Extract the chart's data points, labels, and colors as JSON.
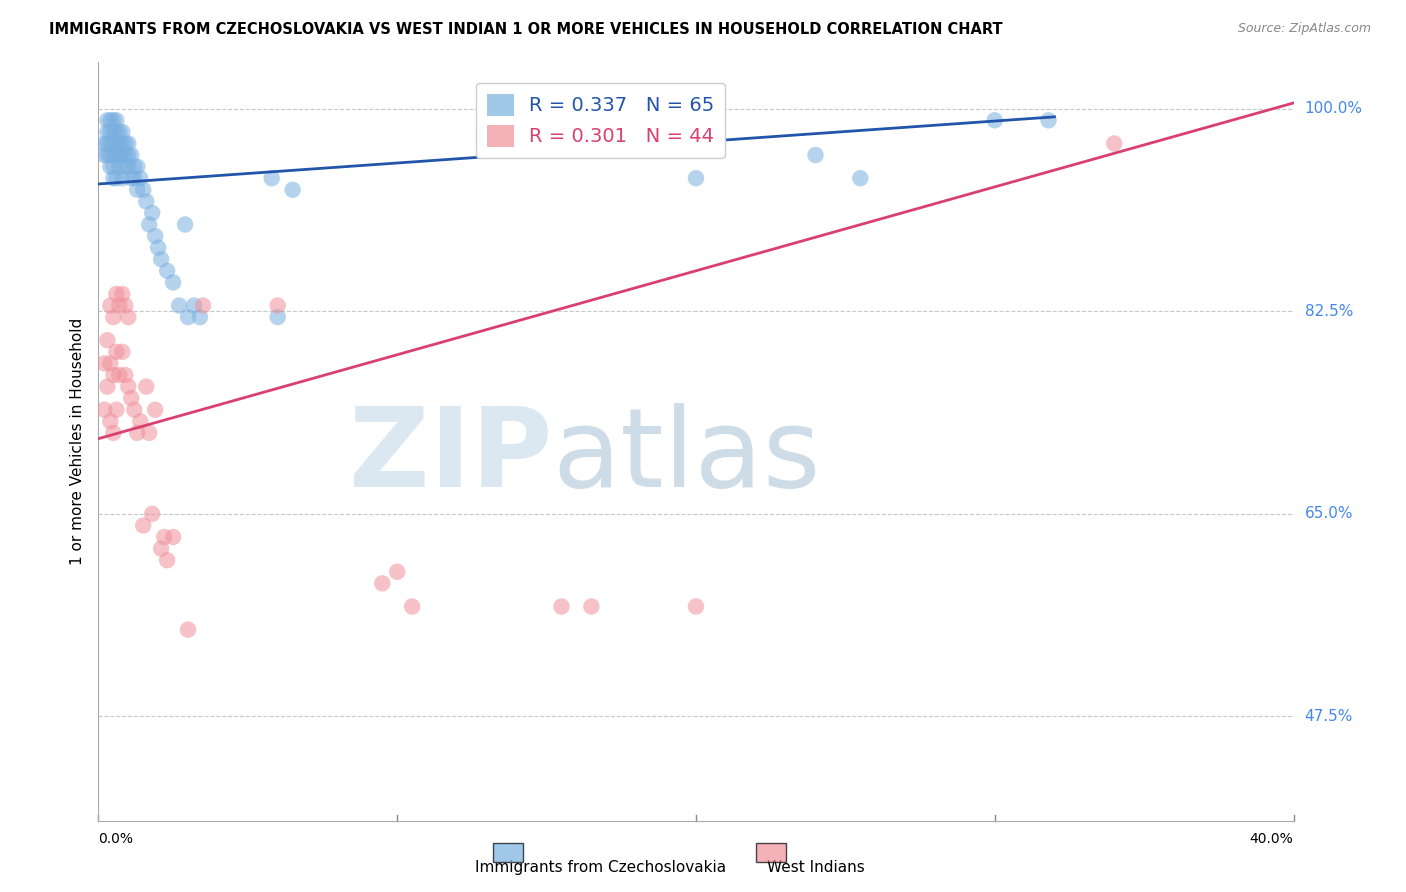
{
  "title": "IMMIGRANTS FROM CZECHOSLOVAKIA VS WEST INDIAN 1 OR MORE VEHICLES IN HOUSEHOLD CORRELATION CHART",
  "source": "Source: ZipAtlas.com",
  "ylabel": "1 or more Vehicles in Household",
  "xlim": [
    0.0,
    0.4
  ],
  "ylim": [
    0.385,
    1.04
  ],
  "blue_R": 0.337,
  "blue_N": 65,
  "pink_R": 0.301,
  "pink_N": 44,
  "blue_color": "#7ab0e0",
  "pink_color": "#f0909a",
  "blue_line_color": "#2255aa",
  "pink_line_color": "#d94070",
  "grid_color": "#c8c8c8",
  "right_label_color": "#4488ee",
  "right_labels": {
    "100.0%": 1.0,
    "82.5%": 0.825,
    "65.0%": 0.65,
    "47.5%": 0.475
  },
  "watermark_ZIP_color": "#d8e6f0",
  "watermark_atlas_color": "#b8cedd",
  "legend_label_blue": "Immigrants from Czechoslovakia",
  "legend_label_pink": "West Indians",
  "blue_line_x0": 0.0,
  "blue_line_y0": 0.935,
  "blue_line_x1": 0.32,
  "blue_line_y1": 0.993,
  "pink_line_x0": 0.0,
  "pink_line_y0": 0.715,
  "pink_line_x1": 0.4,
  "pink_line_y1": 1.005,
  "blue_scatter_x": [
    0.002,
    0.002,
    0.003,
    0.003,
    0.003,
    0.003,
    0.004,
    0.004,
    0.004,
    0.004,
    0.004,
    0.005,
    0.005,
    0.005,
    0.005,
    0.005,
    0.005,
    0.006,
    0.006,
    0.006,
    0.006,
    0.006,
    0.007,
    0.007,
    0.007,
    0.007,
    0.008,
    0.008,
    0.008,
    0.008,
    0.009,
    0.009,
    0.009,
    0.01,
    0.01,
    0.01,
    0.011,
    0.011,
    0.012,
    0.012,
    0.013,
    0.013,
    0.014,
    0.015,
    0.016,
    0.017,
    0.018,
    0.019,
    0.02,
    0.021,
    0.023,
    0.025,
    0.027,
    0.029,
    0.03,
    0.032,
    0.034,
    0.058,
    0.06,
    0.065,
    0.2,
    0.24,
    0.255,
    0.3,
    0.318
  ],
  "blue_scatter_y": [
    0.96,
    0.97,
    0.99,
    0.98,
    0.97,
    0.96,
    0.99,
    0.98,
    0.97,
    0.96,
    0.95,
    0.99,
    0.98,
    0.97,
    0.96,
    0.95,
    0.94,
    0.99,
    0.98,
    0.97,
    0.96,
    0.94,
    0.98,
    0.97,
    0.96,
    0.95,
    0.98,
    0.97,
    0.96,
    0.94,
    0.97,
    0.96,
    0.95,
    0.97,
    0.96,
    0.95,
    0.96,
    0.94,
    0.95,
    0.94,
    0.95,
    0.93,
    0.94,
    0.93,
    0.92,
    0.9,
    0.91,
    0.89,
    0.88,
    0.87,
    0.86,
    0.85,
    0.83,
    0.9,
    0.82,
    0.83,
    0.82,
    0.94,
    0.82,
    0.93,
    0.94,
    0.96,
    0.94,
    0.99,
    0.99
  ],
  "pink_scatter_x": [
    0.002,
    0.002,
    0.003,
    0.003,
    0.004,
    0.004,
    0.004,
    0.005,
    0.005,
    0.005,
    0.006,
    0.006,
    0.006,
    0.007,
    0.007,
    0.008,
    0.008,
    0.009,
    0.009,
    0.01,
    0.01,
    0.011,
    0.012,
    0.013,
    0.014,
    0.015,
    0.016,
    0.017,
    0.018,
    0.019,
    0.021,
    0.022,
    0.023,
    0.025,
    0.03,
    0.035,
    0.095,
    0.1,
    0.105,
    0.2,
    0.34,
    0.155,
    0.165,
    0.06
  ],
  "pink_scatter_y": [
    0.78,
    0.74,
    0.8,
    0.76,
    0.83,
    0.78,
    0.73,
    0.82,
    0.77,
    0.72,
    0.84,
    0.79,
    0.74,
    0.83,
    0.77,
    0.84,
    0.79,
    0.83,
    0.77,
    0.82,
    0.76,
    0.75,
    0.74,
    0.72,
    0.73,
    0.64,
    0.76,
    0.72,
    0.65,
    0.74,
    0.62,
    0.63,
    0.61,
    0.63,
    0.55,
    0.83,
    0.59,
    0.6,
    0.57,
    0.57,
    0.97,
    0.57,
    0.57,
    0.83
  ],
  "x_tick_positions": [
    0.0,
    0.1,
    0.2,
    0.3,
    0.4
  ],
  "bottom_left_label": "0.0%",
  "bottom_right_label": "40.0%"
}
